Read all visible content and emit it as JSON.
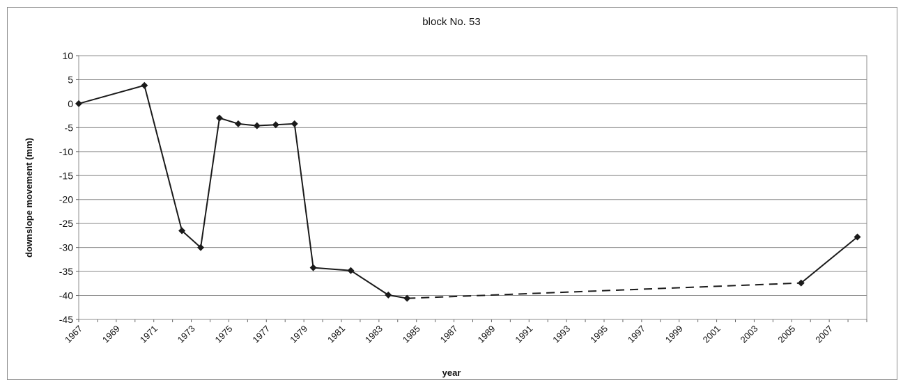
{
  "chart_data": {
    "type": "line",
    "title": "block No. 53",
    "xlabel": "year",
    "ylabel": "downslope movement (mm)",
    "xlim": [
      1967,
      2009
    ],
    "ylim": [
      -45,
      10
    ],
    "x_ticks": [
      "1967",
      "1969",
      "1971",
      "1973",
      "1975",
      "1977",
      "1979",
      "1981",
      "1983",
      "1985",
      "1987",
      "1989",
      "1991",
      "1993",
      "1995",
      "1997",
      "1999",
      "2001",
      "2003",
      "2005",
      "2007"
    ],
    "y_ticks": [
      10,
      5,
      0,
      -5,
      -10,
      -15,
      -20,
      -25,
      -30,
      -35,
      -40,
      -45
    ],
    "grid": "horizontal",
    "series": [
      {
        "points": [
          {
            "x": 1967.0,
            "y": 0
          },
          {
            "x": 1970.5,
            "y": 3.8
          },
          {
            "x": 1972.5,
            "y": -26.5
          },
          {
            "x": 1973.5,
            "y": -30
          },
          {
            "x": 1974.5,
            "y": -3
          },
          {
            "x": 1975.5,
            "y": -4.2
          },
          {
            "x": 1976.5,
            "y": -4.6
          },
          {
            "x": 1977.5,
            "y": -4.4
          },
          {
            "x": 1978.5,
            "y": -4.2
          },
          {
            "x": 1979.5,
            "y": -34.2
          },
          {
            "x": 1981.5,
            "y": -34.8
          },
          {
            "x": 1983.5,
            "y": -39.9
          },
          {
            "x": 1984.5,
            "y": -40.6
          },
          {
            "x": 2005.5,
            "y": -37.4
          },
          {
            "x": 2008.5,
            "y": -27.8
          }
        ],
        "segment_styles": [
          "solid",
          "solid",
          "solid",
          "solid",
          "solid",
          "solid",
          "solid",
          "solid",
          "solid",
          "solid",
          "solid",
          "solid",
          "dashed",
          "solid"
        ],
        "color": "#1a1a1a",
        "marker": "diamond"
      }
    ]
  }
}
